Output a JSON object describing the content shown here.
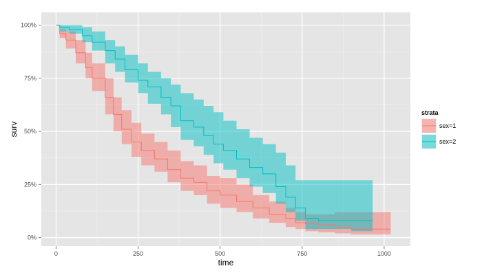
{
  "chart_data": {
    "type": "area",
    "xlabel": "time",
    "ylabel": "surv",
    "xlim": [
      -45,
      1080
    ],
    "ylim": [
      -0.04,
      1.06
    ],
    "x_ticks": [
      0,
      250,
      500,
      750,
      1000
    ],
    "x_tick_labels": [
      "0",
      "250",
      "500",
      "750",
      "1000"
    ],
    "y_ticks": [
      0,
      0.25,
      0.5,
      0.75,
      1.0
    ],
    "y_tick_labels": [
      "0%",
      "25%",
      "50%",
      "75%",
      "100%"
    ],
    "grid": true,
    "legend": {
      "title": "strata",
      "position": "right"
    },
    "series": [
      {
        "name": "sex=1",
        "color": "#F8766D",
        "x": [
          0,
          11,
          30,
          60,
          90,
          110,
          150,
          175,
          200,
          230,
          260,
          300,
          340,
          380,
          420,
          460,
          500,
          550,
          600,
          650,
          700,
          730,
          760,
          800,
          850,
          900,
          960,
          1020
        ],
        "surv": [
          1.0,
          0.96,
          0.93,
          0.87,
          0.8,
          0.75,
          0.66,
          0.58,
          0.51,
          0.45,
          0.41,
          0.37,
          0.32,
          0.28,
          0.26,
          0.22,
          0.2,
          0.17,
          0.14,
          0.11,
          0.09,
          0.07,
          0.065,
          0.06,
          0.05,
          0.04,
          0.04,
          0.04
        ],
        "lower": [
          1.0,
          0.94,
          0.89,
          0.82,
          0.75,
          0.69,
          0.58,
          0.5,
          0.44,
          0.38,
          0.34,
          0.31,
          0.26,
          0.22,
          0.2,
          0.16,
          0.14,
          0.12,
          0.09,
          0.07,
          0.05,
          0.04,
          0.03,
          0.025,
          0.02,
          0.015,
          0.015,
          0.015
        ],
        "upper": [
          1.0,
          0.98,
          0.97,
          0.93,
          0.87,
          0.82,
          0.75,
          0.66,
          0.6,
          0.54,
          0.49,
          0.45,
          0.41,
          0.36,
          0.34,
          0.29,
          0.28,
          0.25,
          0.2,
          0.17,
          0.14,
          0.12,
          0.11,
          0.11,
          0.12,
          0.12,
          0.12,
          0.12
        ]
      },
      {
        "name": "sex=2",
        "color": "#00BFC4",
        "x": [
          0,
          11,
          40,
          80,
          110,
          150,
          180,
          210,
          250,
          280,
          320,
          350,
          380,
          420,
          450,
          480,
          510,
          550,
          590,
          630,
          670,
          700,
          730,
          760,
          800,
          900,
          965
        ],
        "surv": [
          1.0,
          0.99,
          0.98,
          0.95,
          0.92,
          0.88,
          0.84,
          0.79,
          0.74,
          0.71,
          0.66,
          0.62,
          0.55,
          0.52,
          0.48,
          0.44,
          0.41,
          0.37,
          0.33,
          0.3,
          0.24,
          0.19,
          0.14,
          0.09,
          0.08,
          0.08,
          0.08
        ],
        "lower": [
          1.0,
          0.97,
          0.96,
          0.92,
          0.88,
          0.82,
          0.78,
          0.73,
          0.68,
          0.63,
          0.58,
          0.52,
          0.46,
          0.43,
          0.39,
          0.35,
          0.32,
          0.28,
          0.24,
          0.21,
          0.16,
          0.12,
          0.08,
          0.04,
          0.04,
          0.03,
          0.03
        ],
        "upper": [
          1.0,
          1.0,
          1.0,
          0.99,
          0.97,
          0.93,
          0.9,
          0.86,
          0.82,
          0.78,
          0.75,
          0.72,
          0.68,
          0.65,
          0.62,
          0.59,
          0.55,
          0.51,
          0.47,
          0.44,
          0.4,
          0.34,
          0.27,
          0.27,
          0.27,
          0.27,
          0.27
        ]
      }
    ],
    "colors": {
      "panel_bg": "#E5E5E5",
      "grid": "#FFFFFF",
      "axis_text": "#4D4D4D"
    }
  }
}
